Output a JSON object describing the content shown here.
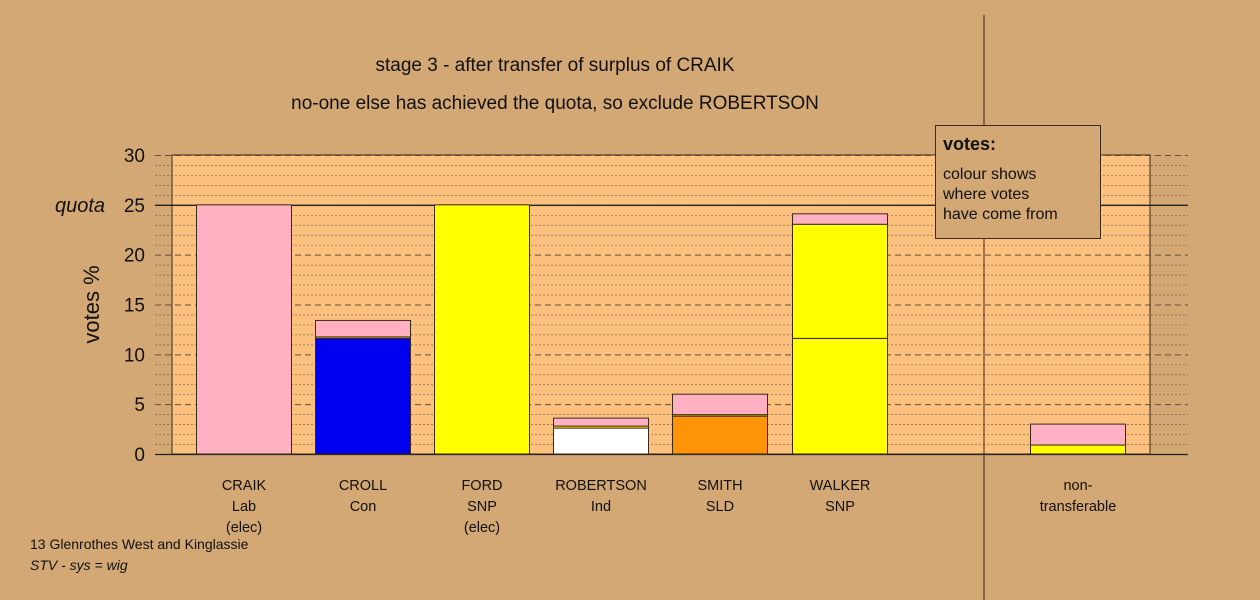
{
  "title_line1": "stage 3 - after transfer of surplus of CRAIK",
  "title_line2": "no-one else has achieved the quota, so exclude ROBERTSON",
  "legend": {
    "title": "votes:",
    "lines": [
      "colour shows",
      "where votes",
      "have come from"
    ]
  },
  "footer": {
    "ward": "13 Glenrothes West and Kinglassie",
    "system": "STV - sys = wig"
  },
  "colors": {
    "background": "#d3a875",
    "plot_area": "#fcc17e",
    "Lab": "#ffb0c3",
    "Con": "#0000f0",
    "SNP": "#ffff00",
    "Ind": "#ffffff",
    "SLD": "#ff9307"
  },
  "chart_data": {
    "type": "bar",
    "stacked": true,
    "ylabel": "votes %",
    "ylim": [
      0,
      30
    ],
    "yticks": [
      0,
      5,
      10,
      15,
      20,
      25,
      30
    ],
    "quota": 25,
    "quota_label": "quota",
    "grid": true,
    "categories": [
      {
        "lines": [
          "CRAIK",
          "Lab",
          "(elec)"
        ],
        "segments": [
          {
            "source": "Lab",
            "value": 25.0
          }
        ]
      },
      {
        "lines": [
          "CROLL",
          "Con"
        ],
        "segments": [
          {
            "source": "Con",
            "value": 11.6
          },
          {
            "source": "SNP",
            "value": 0.15
          },
          {
            "source": "Lab",
            "value": 1.65
          }
        ]
      },
      {
        "lines": [
          "FORD",
          "SNP",
          "(elec)"
        ],
        "segments": [
          {
            "source": "SNP",
            "value": 25.0
          }
        ]
      },
      {
        "lines": [
          "ROBERTSON",
          "Ind"
        ],
        "segments": [
          {
            "source": "Ind",
            "value": 2.6
          },
          {
            "source": "SNP",
            "value": 0.2
          },
          {
            "source": "Lab",
            "value": 0.8
          }
        ]
      },
      {
        "lines": [
          "SMITH",
          "SLD"
        ],
        "segments": [
          {
            "source": "SLD",
            "value": 3.8
          },
          {
            "source": "SNP",
            "value": 0.15
          },
          {
            "source": "Lab",
            "value": 2.05
          }
        ]
      },
      {
        "lines": [
          "WALKER",
          "SNP"
        ],
        "segments": [
          {
            "source": "SNP",
            "value": 11.6
          },
          {
            "source": "SNP",
            "value": 11.45
          },
          {
            "source": "Lab",
            "value": 1.05
          }
        ]
      },
      {
        "lines": [
          "non-",
          "transferable"
        ],
        "separate": true,
        "segments": [
          {
            "source": "SNP",
            "value": 0.9
          },
          {
            "source": "Lab",
            "value": 2.1
          }
        ]
      }
    ]
  }
}
